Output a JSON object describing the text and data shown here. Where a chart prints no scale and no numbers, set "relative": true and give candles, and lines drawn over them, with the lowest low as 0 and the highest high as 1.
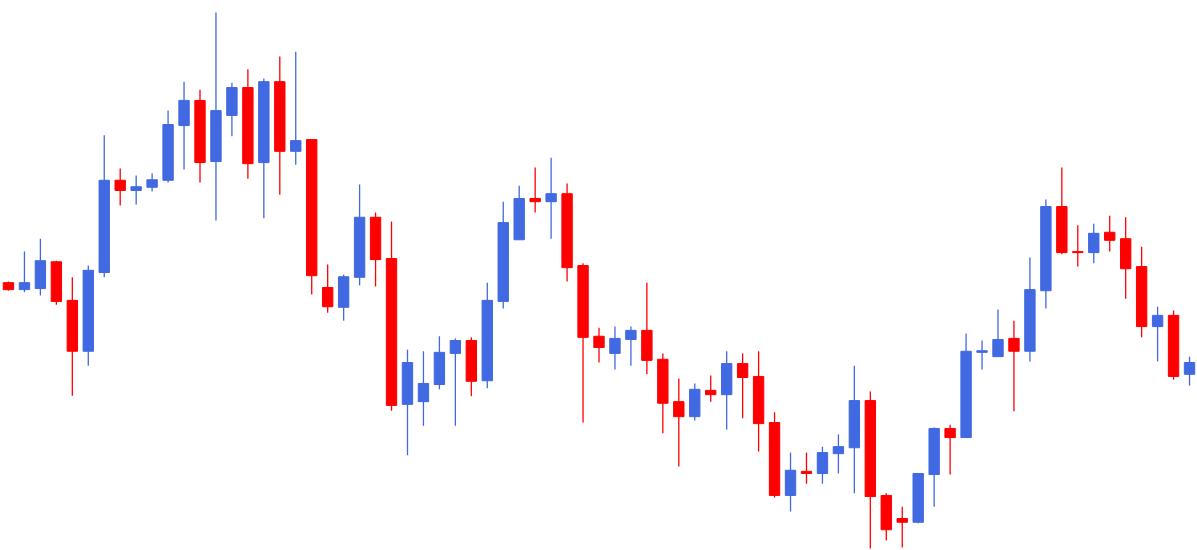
{
  "chart_data": {
    "type": "candlestick",
    "relative": true,
    "tick_labels": false,
    "categories": [
      null,
      null,
      null,
      null,
      null,
      null,
      null,
      null,
      null,
      null,
      null,
      null,
      null,
      null,
      null,
      null,
      null,
      null,
      null,
      null,
      null,
      null,
      null,
      null,
      null,
      null,
      null,
      null,
      null,
      null,
      null,
      null,
      null,
      null,
      null,
      null,
      null,
      null,
      null,
      null,
      null,
      null,
      null,
      null,
      null,
      null,
      null,
      null,
      null,
      null,
      null,
      null,
      null,
      null,
      null,
      null,
      null,
      null,
      null,
      null,
      null,
      null,
      null,
      null,
      null,
      null,
      null,
      null,
      null,
      null,
      null,
      null,
      null,
      null,
      null
    ],
    "ohlc": [
      [
        0.496,
        0.498,
        0.481,
        0.483
      ],
      [
        0.483,
        0.554,
        0.478,
        0.496
      ],
      [
        0.485,
        0.578,
        0.472,
        0.537
      ],
      [
        0.535,
        0.537,
        0.455,
        0.461
      ],
      [
        0.463,
        0.506,
        0.285,
        0.368
      ],
      [
        0.368,
        0.528,
        0.341,
        0.519
      ],
      [
        0.515,
        0.771,
        0.506,
        0.687
      ],
      [
        0.687,
        0.709,
        0.64,
        0.668
      ],
      [
        0.668,
        0.696,
        0.642,
        0.675
      ],
      [
        0.674,
        0.7,
        0.666,
        0.688
      ],
      [
        0.687,
        0.817,
        0.683,
        0.791
      ],
      [
        0.789,
        0.871,
        0.707,
        0.836
      ],
      [
        0.836,
        0.856,
        0.683,
        0.72
      ],
      [
        0.722,
        1,
        0.612,
        0.817
      ],
      [
        0.808,
        0.869,
        0.769,
        0.86
      ],
      [
        0.86,
        0.894,
        0.69,
        0.718
      ],
      [
        0.72,
        0.877,
        0.616,
        0.871
      ],
      [
        0.871,
        0.918,
        0.66,
        0.741
      ],
      [
        0.741,
        0.927,
        0.716,
        0.761
      ],
      [
        0.763,
        0.763,
        0.474,
        0.509
      ],
      [
        0.487,
        0.53,
        0.44,
        0.451
      ],
      [
        0.45,
        0.511,
        0.425,
        0.507
      ],
      [
        0.506,
        0.679,
        0.491,
        0.618
      ],
      [
        0.618,
        0.627,
        0.489,
        0.539
      ],
      [
        0.541,
        0.61,
        0.257,
        0.267
      ],
      [
        0.269,
        0.371,
        0.174,
        0.347
      ],
      [
        0.274,
        0.368,
        0.229,
        0.308
      ],
      [
        0.306,
        0.396,
        0.297,
        0.366
      ],
      [
        0.364,
        0.392,
        0.229,
        0.388
      ],
      [
        0.388,
        0.394,
        0.284,
        0.312
      ],
      [
        0.313,
        0.496,
        0.299,
        0.463
      ],
      [
        0.461,
        0.647,
        0.448,
        0.608
      ],
      [
        0.576,
        0.677,
        0.576,
        0.653
      ],
      [
        0.653,
        0.711,
        0.627,
        0.647
      ],
      [
        0.647,
        0.729,
        0.578,
        0.662
      ],
      [
        0.662,
        0.681,
        0.498,
        0.524
      ],
      [
        0.528,
        0.532,
        0.235,
        0.394
      ],
      [
        0.396,
        0.412,
        0.347,
        0.375
      ],
      [
        0.364,
        0.414,
        0.334,
        0.392
      ],
      [
        0.39,
        0.414,
        0.341,
        0.407
      ],
      [
        0.407,
        0.496,
        0.325,
        0.351
      ],
      [
        0.353,
        0.364,
        0.215,
        0.271
      ],
      [
        0.274,
        0.317,
        0.153,
        0.246
      ],
      [
        0.246,
        0.308,
        0.239,
        0.297
      ],
      [
        0.295,
        0.323,
        0.274,
        0.287
      ],
      [
        0.287,
        0.368,
        0.222,
        0.345
      ],
      [
        0.345,
        0.364,
        0.243,
        0.319
      ],
      [
        0.321,
        0.368,
        0.181,
        0.233
      ],
      [
        0.235,
        0.254,
        0.095,
        0.099
      ],
      [
        0.099,
        0.179,
        0.069,
        0.146
      ],
      [
        0.144,
        0.179,
        0.121,
        0.14
      ],
      [
        0.14,
        0.19,
        0.121,
        0.179
      ],
      [
        0.177,
        0.213,
        0.14,
        0.19
      ],
      [
        0.188,
        0.341,
        0.103,
        0.276
      ],
      [
        0.276,
        0.293,
        0,
        0.097
      ],
      [
        0.099,
        0.103,
        0.015,
        0.035
      ],
      [
        0.056,
        0.078,
        0.002,
        0.049
      ],
      [
        0.049,
        0.14,
        0.047,
        0.14
      ],
      [
        0.138,
        0.226,
        0.078,
        0.224
      ],
      [
        0.224,
        0.231,
        0.138,
        0.207
      ],
      [
        0.207,
        0.401,
        0.207,
        0.368
      ],
      [
        0.366,
        0.388,
        0.334,
        0.369
      ],
      [
        0.358,
        0.446,
        0.358,
        0.39
      ],
      [
        0.392,
        0.425,
        0.256,
        0.368
      ],
      [
        0.368,
        0.543,
        0.349,
        0.483
      ],
      [
        0.481,
        0.651,
        0.448,
        0.638
      ],
      [
        0.638,
        0.711,
        0.549,
        0.552
      ],
      [
        0.554,
        0.603,
        0.526,
        0.552
      ],
      [
        0.552,
        0.606,
        0.532,
        0.588
      ],
      [
        0.59,
        0.621,
        0.554,
        0.575
      ],
      [
        0.578,
        0.618,
        0.466,
        0.522
      ],
      [
        0.526,
        0.563,
        0.394,
        0.414
      ],
      [
        0.414,
        0.451,
        0.349,
        0.435
      ],
      [
        0.435,
        0.444,
        0.315,
        0.321
      ],
      [
        0.325,
        0.358,
        0.304,
        0.347
      ]
    ],
    "colors": [
      "#ff0000",
      "#4169e1",
      "#4169e1",
      "#ff0000",
      "#ff0000",
      "#4169e1",
      "#4169e1",
      "#ff0000",
      "#4169e1",
      "#4169e1",
      "#4169e1",
      "#4169e1",
      "#ff0000",
      "#4169e1",
      "#4169e1",
      "#ff0000",
      "#4169e1",
      "#ff0000",
      "#4169e1",
      "#ff0000",
      "#ff0000",
      "#4169e1",
      "#4169e1",
      "#ff0000",
      "#ff0000",
      "#4169e1",
      "#4169e1",
      "#4169e1",
      "#4169e1",
      "#ff0000",
      "#4169e1",
      "#4169e1",
      "#4169e1",
      "#ff0000",
      "#4169e1",
      "#ff0000",
      "#ff0000",
      "#ff0000",
      "#4169e1",
      "#4169e1",
      "#ff0000",
      "#ff0000",
      "#ff0000",
      "#4169e1",
      "#ff0000",
      "#4169e1",
      "#ff0000",
      "#ff0000",
      "#ff0000",
      "#4169e1",
      "#ff0000",
      "#4169e1",
      "#4169e1",
      "#4169e1",
      "#ff0000",
      "#ff0000",
      "#ff0000",
      "#4169e1",
      "#4169e1",
      "#ff0000",
      "#4169e1",
      "#4169e1",
      "#4169e1",
      "#ff0000",
      "#4169e1",
      "#4169e1",
      "#ff0000",
      "#ff0000",
      "#4169e1",
      "#ff0000",
      "#ff0000",
      "#ff0000",
      "#4169e1",
      "#ff0000",
      "#4169e1"
    ]
  }
}
